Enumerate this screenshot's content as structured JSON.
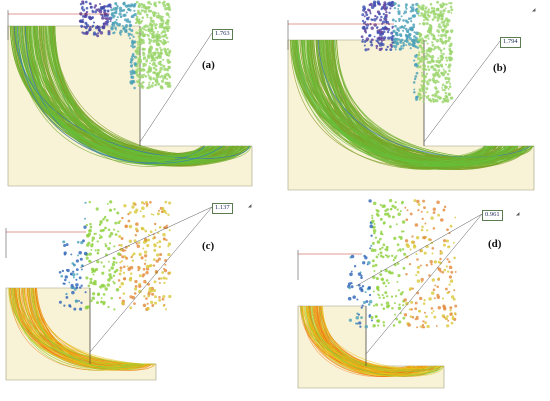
{
  "figure": {
    "panels": [
      {
        "id": "a",
        "label": "(a)",
        "fos": "1.763",
        "scheme": "bluegreen"
      },
      {
        "id": "b",
        "label": "(b)",
        "fos": "1.794",
        "scheme": "bluegreen"
      },
      {
        "id": "c",
        "label": "(c)",
        "fos": "1.137",
        "scheme": "warm"
      },
      {
        "id": "d",
        "label": "(d)",
        "fos": "0.961",
        "scheme": "warm"
      }
    ]
  },
  "colors": {
    "ground": "#f8f2d6",
    "ground_border": "#9e9e80",
    "bluegreen_base": "#6bbf2a",
    "bluegreen_edge": "#2f6fd0",
    "warm_core": "#f07a12",
    "warm_mid": "#e6c31c",
    "warm_outer": "#8ccf3a",
    "fos_box_border": "#5a7c50"
  }
}
